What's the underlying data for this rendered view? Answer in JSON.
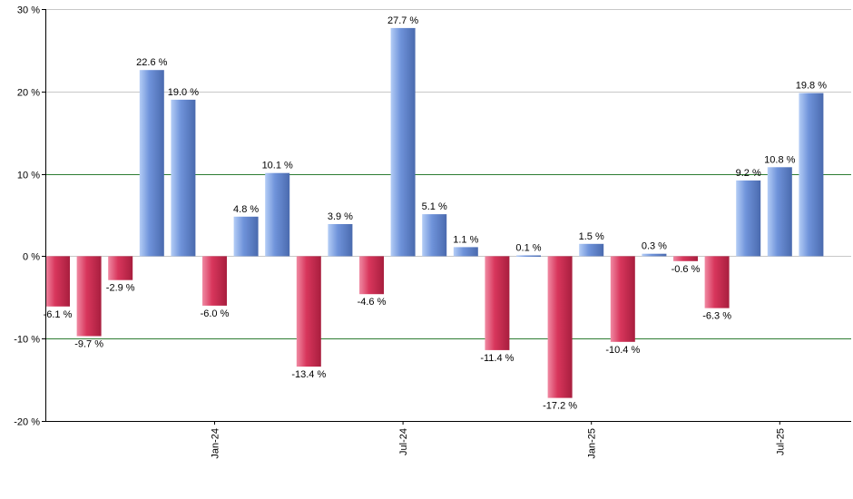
{
  "chart_data": {
    "type": "bar",
    "title": "",
    "xlabel": "",
    "ylabel": "",
    "ylim": [
      -20,
      30
    ],
    "yticks": [
      -20,
      -10,
      0,
      10,
      20,
      30
    ],
    "ytick_labels": [
      "-20 %",
      "-10 %",
      "0 %",
      "10 %",
      "20 %",
      "30 %"
    ],
    "highlight_gridlines": [
      -10,
      10
    ],
    "months_start": "2023-08",
    "values": [
      -6.1,
      -9.7,
      -2.9,
      22.6,
      19.0,
      -6.0,
      4.8,
      10.1,
      -13.4,
      3.9,
      -4.6,
      27.7,
      5.1,
      1.1,
      -11.4,
      0.1,
      -17.2,
      1.5,
      -10.4,
      0.3,
      -0.6,
      -6.3,
      9.2,
      10.8,
      19.8
    ],
    "value_labels": [
      "-6.1 %",
      "-9.7 %",
      "-2.9 %",
      "22.6 %",
      "19.0 %",
      "-6.0 %",
      "4.8 %",
      "10.1 %",
      "-13.4 %",
      "3.9 %",
      "-4.6 %",
      "27.7 %",
      "5.1 %",
      "1.1 %",
      "-11.4 %",
      "0.1 %",
      "-17.2 %",
      "1.5 %",
      "-10.4 %",
      "0.3 %",
      "-0.6 %",
      "-6.3 %",
      "9.2 %",
      "10.8 %",
      "19.8 %"
    ],
    "xtick_labels": [
      {
        "index": 5,
        "label": "Jan-24"
      },
      {
        "index": 11,
        "label": "Jul-24"
      },
      {
        "index": 17,
        "label": "Jan-25"
      },
      {
        "index": 23,
        "label": "Jul-25"
      }
    ],
    "colors": {
      "positive_light": "#b4cdf6",
      "positive_mid": "#6f93da",
      "positive_dark": "#4a6aae",
      "negative_light": "#f08aa3",
      "negative_mid": "#d8365c",
      "negative_dark": "#a81e3e",
      "gridline": "#c8c8c8",
      "highlight_gridline": "#2e7d32",
      "axis": "#000000"
    }
  }
}
